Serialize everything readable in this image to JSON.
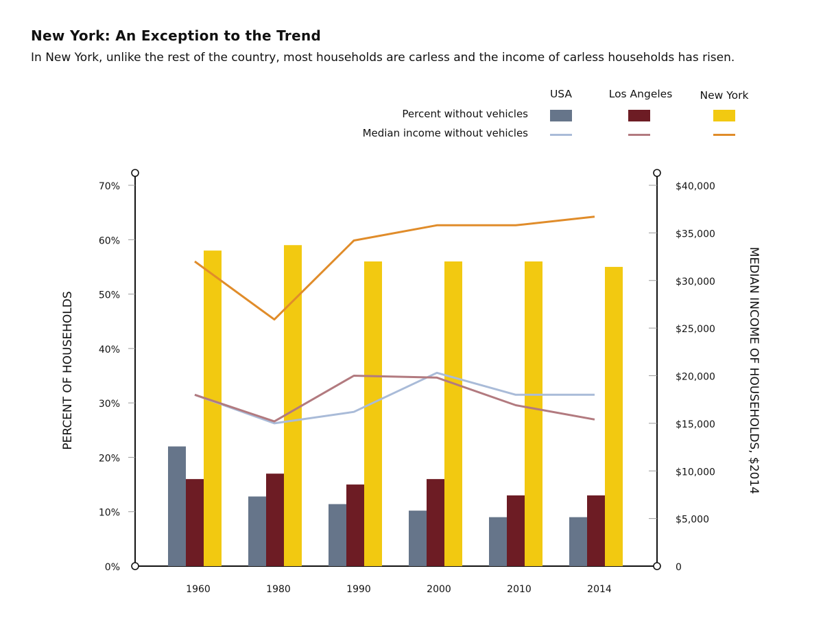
{
  "title": "New York: An Exception to the Trend",
  "subtitle": "In New York, unlike the rest of the country, most households are carless and the income of carless households has risen.",
  "legend": {
    "columns": [
      "USA",
      "Los Angeles",
      "New York"
    ],
    "rows": [
      "Percent without vehicles",
      "Median income without vehicles"
    ]
  },
  "colors": {
    "usa_bar": "#66758a",
    "la_bar": "#6d1c24",
    "ny_bar": "#f2c911",
    "usa_line": "#a9bbd8",
    "la_line": "#b27a7f",
    "ny_line": "#e08c2a"
  },
  "chart_data": {
    "type": "bar",
    "categories": [
      "1960",
      "1980",
      "1990",
      "2000",
      "2010",
      "2014"
    ],
    "bar_series": [
      {
        "name": "USA",
        "values": [
          22,
          12.8,
          11.4,
          10.2,
          9,
          9
        ]
      },
      {
        "name": "Los Angeles",
        "values": [
          16,
          17,
          15,
          16,
          13,
          13
        ]
      },
      {
        "name": "New York",
        "values": [
          58,
          59,
          56,
          56,
          56,
          55
        ]
      }
    ],
    "line_series": [
      {
        "name": "USA",
        "values": [
          18000,
          15000,
          16200,
          20300,
          18000,
          18000
        ]
      },
      {
        "name": "Los Angeles",
        "values": [
          18000,
          15200,
          20000,
          19800,
          16900,
          15400
        ]
      },
      {
        "name": "New York",
        "values": [
          32000,
          25900,
          34200,
          35800,
          35800,
          36700
        ]
      }
    ],
    "ylabel": "PERCENT OF HOUSEHOLDS",
    "y2label": "MEDIAN INCOME OF HOUSEHOLDS, $2014",
    "ylim": [
      0,
      70
    ],
    "y2lim": [
      0,
      40000
    ],
    "yticks": [
      "0%",
      "10%",
      "20%",
      "30%",
      "40%",
      "50%",
      "60%",
      "70%"
    ],
    "y2ticks": [
      "0",
      "$5,000",
      "$10,000",
      "$15,000",
      "$20,000",
      "$25,000",
      "$30,000",
      "$35,000",
      "$40,000"
    ]
  }
}
